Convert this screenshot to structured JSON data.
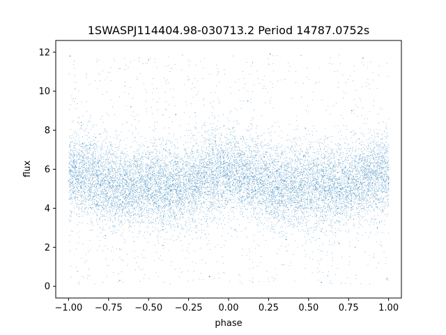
{
  "chart_data": {
    "type": "scatter",
    "title": "1SWASPJ114404.98-030713.2 Period 14787.0752s",
    "xlabel": "phase",
    "ylabel": "flux",
    "xlim": [
      -1.08,
      1.08
    ],
    "ylim": [
      -0.6,
      12.6
    ],
    "xticks": [
      -1.0,
      -0.75,
      -0.5,
      -0.25,
      0.0,
      0.25,
      0.5,
      0.75,
      1.0
    ],
    "xtick_labels": [
      "−1.00",
      "−0.75",
      "−0.50",
      "−0.25",
      "0.00",
      "0.25",
      "0.50",
      "0.75",
      "1.00"
    ],
    "yticks": [
      0,
      2,
      4,
      6,
      8,
      10,
      12
    ],
    "ytick_labels": [
      "0",
      "2",
      "4",
      "6",
      "8",
      "10",
      "12"
    ],
    "grid": false,
    "point_color": "#1f77b4",
    "points": [
      [
        -1.0,
        5.4
      ],
      [
        -0.95,
        6.1
      ],
      [
        -0.9,
        4.8
      ],
      [
        -0.85,
        5.9
      ],
      [
        -0.8,
        5.2
      ],
      [
        -0.75,
        6.0
      ],
      [
        -0.7,
        5.1
      ],
      [
        -0.65,
        5.7
      ],
      [
        -0.6,
        4.9
      ],
      [
        -0.55,
        5.5
      ],
      [
        -0.5,
        5.0
      ],
      [
        -0.45,
        5.3
      ],
      [
        -0.4,
        4.7
      ],
      [
        -0.35,
        5.2
      ],
      [
        -0.3,
        4.9
      ],
      [
        -0.25,
        5.4
      ],
      [
        -0.2,
        5.1
      ],
      [
        -0.15,
        5.6
      ],
      [
        -0.1,
        5.3
      ],
      [
        -0.05,
        5.8
      ],
      [
        0.0,
        5.5
      ],
      [
        0.05,
        5.9
      ],
      [
        0.1,
        5.6
      ],
      [
        0.15,
        5.8
      ],
      [
        0.2,
        5.3
      ],
      [
        0.25,
        5.6
      ],
      [
        0.3,
        5.1
      ],
      [
        0.35,
        5.4
      ],
      [
        0.4,
        4.9
      ],
      [
        0.45,
        5.2
      ],
      [
        0.5,
        4.8
      ],
      [
        0.55,
        5.3
      ],
      [
        0.6,
        4.9
      ],
      [
        0.65,
        5.4
      ],
      [
        0.7,
        5.0
      ],
      [
        0.75,
        5.5
      ],
      [
        0.8,
        5.2
      ],
      [
        0.85,
        5.7
      ],
      [
        0.9,
        5.3
      ],
      [
        0.95,
        5.8
      ],
      [
        1.0,
        5.5
      ],
      [
        -0.92,
        8.4
      ],
      [
        -0.61,
        9.2
      ],
      [
        -0.33,
        8.8
      ],
      [
        0.12,
        9.5
      ],
      [
        0.48,
        8.1
      ],
      [
        0.77,
        9.0
      ],
      [
        -0.77,
        2.6
      ],
      [
        -0.41,
        2.1
      ],
      [
        0.04,
        2.9
      ],
      [
        0.36,
        2.4
      ],
      [
        0.69,
        2.2
      ],
      [
        0.93,
        3.0
      ],
      [
        -0.99,
        11.8
      ],
      [
        -0.5,
        11.6
      ],
      [
        0.26,
        11.9
      ],
      [
        0.84,
        11.7
      ],
      [
        -0.68,
        0.3
      ],
      [
        -0.12,
        0.5
      ],
      [
        0.58,
        0.2
      ],
      [
        0.99,
        0.4
      ]
    ]
  }
}
